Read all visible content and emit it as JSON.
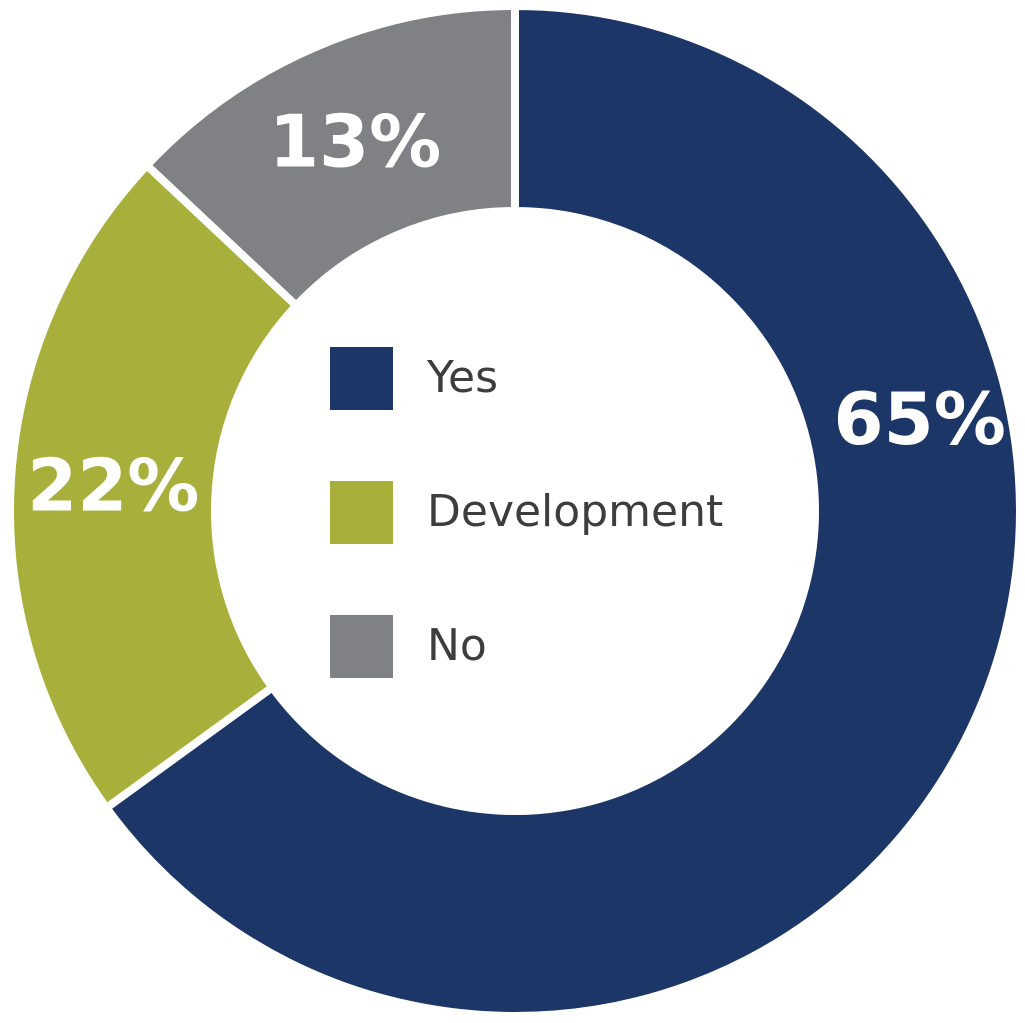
{
  "chart_data": {
    "type": "pie",
    "donut": true,
    "labels": [
      "Yes",
      "Development",
      "No"
    ],
    "values": [
      65,
      22,
      13
    ],
    "value_labels": [
      "65%",
      "22%",
      "13%"
    ],
    "colors": [
      "#1c3668",
      "#a8b03b",
      "#808185"
    ],
    "start": "12 o'clock",
    "direction": "clockwise",
    "legend": {
      "position": "center",
      "items": [
        {
          "label": "Yes",
          "color": "#1c3668"
        },
        {
          "label": "Development",
          "color": "#a8b03b"
        },
        {
          "label": "No",
          "color": "#808185"
        }
      ]
    }
  }
}
